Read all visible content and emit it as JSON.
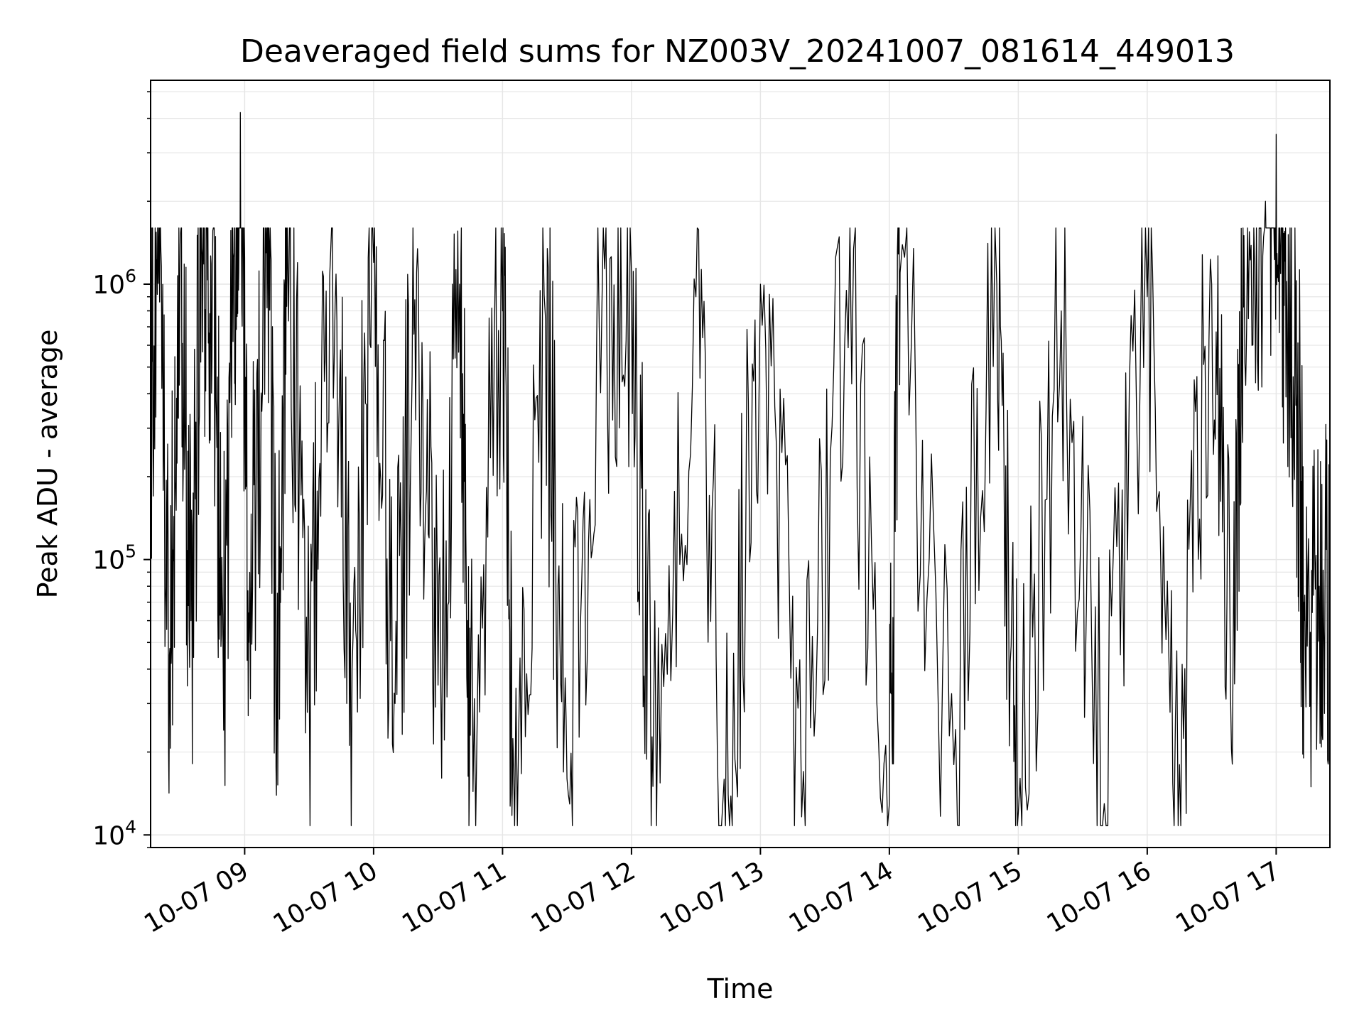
{
  "chart_data": {
    "type": "line",
    "title": "Deaveraged field sums for NZ003V_20241007_081614_449013",
    "xlabel": "Time",
    "ylabel": "Peak ADU - average",
    "yscale": "log",
    "ylim": [
      9000,
      5500000
    ],
    "xlim": [
      "2024-10-07 08:16:14",
      "2024-10-07 17:25:00"
    ],
    "grid": true,
    "line_color": "#000000",
    "grid_color": "#e6e6e6",
    "x_ticks": [
      {
        "time": "2024-10-07 09:00",
        "label": "10-07 09"
      },
      {
        "time": "2024-10-07 10:00",
        "label": "10-07 10"
      },
      {
        "time": "2024-10-07 11:00",
        "label": "10-07 11"
      },
      {
        "time": "2024-10-07 12:00",
        "label": "10-07 12"
      },
      {
        "time": "2024-10-07 13:00",
        "label": "10-07 13"
      },
      {
        "time": "2024-10-07 14:00",
        "label": "10-07 14"
      },
      {
        "time": "2024-10-07 15:00",
        "label": "10-07 15"
      },
      {
        "time": "2024-10-07 16:00",
        "label": "10-07 16"
      },
      {
        "time": "2024-10-07 17:00",
        "label": "10-07 17"
      }
    ],
    "y_ticks": [
      {
        "value": 10000,
        "base": "10",
        "exp": "4"
      },
      {
        "value": 100000,
        "base": "10",
        "exp": "5"
      },
      {
        "value": 1000000,
        "base": "10",
        "exp": "6"
      }
    ],
    "series": [
      {
        "points": [
          [
            "2024-10-07 08:16",
            400000
          ],
          [
            "2024-10-07 08:20",
            1300000
          ],
          [
            "2024-10-07 08:25",
            45000
          ],
          [
            "2024-10-07 08:30",
            1400000
          ],
          [
            "2024-10-07 08:35",
            60000
          ],
          [
            "2024-10-07 08:40",
            1350000
          ],
          [
            "2024-10-07 08:45",
            1200000
          ],
          [
            "2024-10-07 08:50",
            42000
          ],
          [
            "2024-10-07 08:55",
            1300000
          ],
          [
            "2024-10-07 08:58",
            4200000
          ],
          [
            "2024-10-07 09:02",
            50000
          ],
          [
            "2024-10-07 09:10",
            1300000
          ],
          [
            "2024-10-07 09:15",
            38000
          ],
          [
            "2024-10-07 09:20",
            1350000
          ],
          [
            "2024-10-07 09:30",
            45000
          ],
          [
            "2024-10-07 09:40",
            1300000
          ],
          [
            "2024-10-07 09:50",
            40000
          ],
          [
            "2024-10-07 10:00",
            1200000
          ],
          [
            "2024-10-07 10:10",
            30000
          ],
          [
            "2024-10-07 10:20",
            1100000
          ],
          [
            "2024-10-07 10:30",
            35000
          ],
          [
            "2024-10-07 10:40",
            1000000
          ],
          [
            "2024-10-07 10:45",
            23000
          ],
          [
            "2024-10-07 11:00",
            800000
          ],
          [
            "2024-10-07 11:05",
            20000
          ],
          [
            "2024-10-07 11:20",
            750000
          ],
          [
            "2024-10-07 11:30",
            16000
          ],
          [
            "2024-10-07 11:45",
            700000
          ],
          [
            "2024-10-07 12:00",
            1100000
          ],
          [
            "2024-10-07 12:10",
            15000
          ],
          [
            "2024-10-07 12:30",
            900000
          ],
          [
            "2024-10-07 12:45",
            14000
          ],
          [
            "2024-10-07 13:00",
            1000000
          ],
          [
            "2024-10-07 13:20",
            17000
          ],
          [
            "2024-10-07 13:40",
            950000
          ],
          [
            "2024-10-07 14:00",
            13000
          ],
          [
            "2024-10-07 14:05",
            1100000
          ],
          [
            "2024-10-07 14:30",
            18000
          ],
          [
            "2024-10-07 14:50",
            1000000
          ],
          [
            "2024-10-07 15:00",
            12000
          ],
          [
            "2024-10-07 15:20",
            800000
          ],
          [
            "2024-10-07 15:40",
            13000
          ],
          [
            "2024-10-07 16:00",
            900000
          ],
          [
            "2024-10-07 16:15",
            18000
          ],
          [
            "2024-10-07 16:30",
            1000000
          ],
          [
            "2024-10-07 16:40",
            50000
          ],
          [
            "2024-10-07 16:45",
            1500000
          ],
          [
            "2024-10-07 16:55",
            2000000
          ],
          [
            "2024-10-07 17:00",
            3500000
          ],
          [
            "2024-10-07 17:05",
            800000
          ],
          [
            "2024-10-07 17:10",
            400000
          ],
          [
            "2024-10-07 17:13",
            60000
          ],
          [
            "2024-10-07 17:20",
            80000
          ],
          [
            "2024-10-07 17:25",
            75000
          ]
        ]
      }
    ]
  }
}
